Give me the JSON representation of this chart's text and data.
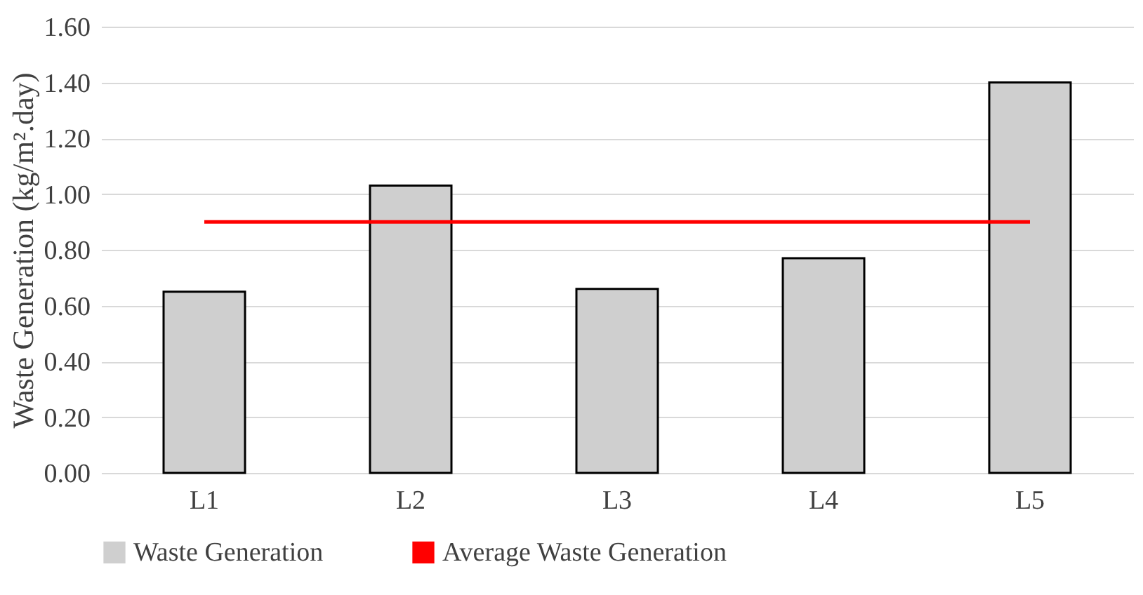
{
  "chart_data": {
    "type": "bar",
    "ylabel": "Waste Generation (kg/m².day)",
    "categories": [
      "L1",
      "L2",
      "L3",
      "L4",
      "L5"
    ],
    "series": [
      {
        "name": "Waste Generation",
        "color": "#cfcfcf",
        "values": [
          0.65,
          1.03,
          0.66,
          0.77,
          1.4
        ]
      },
      {
        "name": "Average Waste Generation",
        "type": "line",
        "color": "#ff0000",
        "values": [
          0.9,
          0.9,
          0.9,
          0.9,
          0.9
        ]
      }
    ],
    "ylim": [
      0,
      1.6
    ],
    "yticks": [
      {
        "value": 0,
        "label": "0.00"
      },
      {
        "value": 0.2,
        "label": "0.20"
      },
      {
        "value": 0.4,
        "label": "0.40"
      },
      {
        "value": 0.6,
        "label": "0.60"
      },
      {
        "value": 0.8,
        "label": "0.80"
      },
      {
        "value": 1.0,
        "label": "1.00"
      },
      {
        "value": 1.2,
        "label": "1.20"
      },
      {
        "value": 1.4,
        "label": "1.40"
      },
      {
        "value": 1.6,
        "label": "1.60"
      }
    ],
    "grid": "y",
    "legend": "bottom"
  }
}
